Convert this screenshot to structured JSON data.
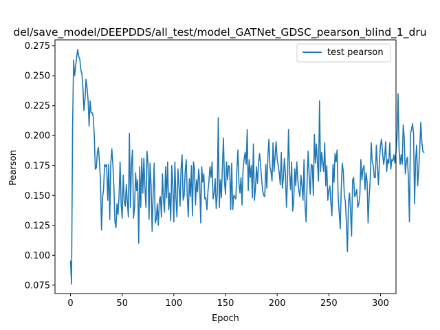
{
  "chart_data": {
    "type": "line",
    "title": "del/save_model/DEEPDDS/all_test/model_GATNet_GDSC_pearson_blind_1_dru",
    "xlabel": "Epoch",
    "ylabel": "Pearson",
    "xlim": [
      -15,
      315
    ],
    "ylim": [
      0.068,
      0.28
    ],
    "xticks": [
      0,
      50,
      100,
      150,
      200,
      250,
      300
    ],
    "xtick_labels": [
      "0",
      "50",
      "100",
      "150",
      "200",
      "250",
      "300"
    ],
    "yticks": [
      0.075,
      0.1,
      0.125,
      0.15,
      0.175,
      0.2,
      0.225,
      0.25,
      0.275
    ],
    "ytick_labels": [
      "0.075",
      "0.100",
      "0.125",
      "0.150",
      "0.175",
      "0.200",
      "0.225",
      "0.250",
      "0.275"
    ],
    "grid": false,
    "legend_position": "top-right",
    "colors": {
      "series": "#1f77b4"
    },
    "series": [
      {
        "name": "test pearson",
        "values": [
          0.095,
          0.076,
          0.205,
          0.263,
          0.25,
          0.258,
          0.266,
          0.272,
          0.266,
          0.264,
          0.255,
          0.252,
          0.24,
          0.221,
          0.23,
          0.247,
          0.24,
          0.23,
          0.208,
          0.229,
          0.219,
          0.219,
          0.216,
          0.2,
          0.172,
          0.173,
          0.186,
          0.19,
          0.178,
          0.163,
          0.121,
          0.148,
          0.155,
          0.176,
          0.174,
          0.176,
          0.146,
          0.176,
          0.13,
          0.177,
          0.189,
          0.176,
          0.157,
          0.128,
          0.123,
          0.143,
          0.134,
          0.15,
          0.178,
          0.143,
          0.131,
          0.167,
          0.145,
          0.141,
          0.159,
          0.145,
          0.132,
          0.202,
          0.14,
          0.176,
          0.188,
          0.131,
          0.14,
          0.169,
          0.154,
          0.163,
          0.11,
          0.174,
          0.14,
          0.181,
          0.152,
          0.181,
          0.157,
          0.14,
          0.187,
          0.177,
          0.13,
          0.177,
          0.158,
          0.12,
          0.152,
          0.177,
          0.127,
          0.13,
          0.143,
          0.125,
          0.146,
          0.149,
          0.132,
          0.168,
          0.146,
          0.136,
          0.174,
          0.148,
          0.178,
          0.138,
          0.152,
          0.129,
          0.175,
          0.158,
          0.128,
          0.178,
          0.148,
          0.132,
          0.172,
          0.158,
          0.141,
          0.172,
          0.184,
          0.146,
          0.15,
          0.17,
          0.18,
          0.149,
          0.132,
          0.164,
          0.149,
          0.175,
          0.133,
          0.178,
          0.172,
          0.142,
          0.163,
          0.153,
          0.172,
          0.162,
          0.127,
          0.174,
          0.161,
          0.168,
          0.147,
          0.148,
          0.138,
          0.153,
          0.162,
          0.174,
          0.165,
          0.178,
          0.147,
          0.152,
          0.164,
          0.139,
          0.151,
          0.215,
          0.14,
          0.163,
          0.148,
          0.173,
          0.198,
          0.162,
          0.151,
          0.178,
          0.163,
          0.175,
          0.174,
          0.138,
          0.177,
          0.138,
          0.15,
          0.149,
          0.147,
          0.171,
          0.188,
          0.16,
          0.152,
          0.165,
          0.142,
          0.172,
          0.18,
          0.186,
          0.176,
          0.205,
          0.154,
          0.18,
          0.165,
          0.175,
          0.148,
          0.193,
          0.146,
          0.156,
          0.174,
          0.16,
          0.177,
          0.185,
          0.175,
          0.163,
          0.154,
          0.15,
          0.149,
          0.176,
          0.156,
          0.182,
          0.197,
          0.174,
          0.17,
          0.162,
          0.194,
          0.17,
          0.183,
          0.195,
          0.18,
          0.175,
          0.169,
          0.159,
          0.186,
          0.156,
          0.164,
          0.181,
          0.168,
          0.14,
          0.164,
          0.205,
          0.168,
          0.155,
          0.178,
          0.137,
          0.145,
          0.172,
          0.158,
          0.178,
          0.163,
          0.154,
          0.149,
          0.167,
          0.158,
          0.146,
          0.18,
          0.142,
          0.128,
          0.163,
          0.187,
          0.166,
          0.151,
          0.176,
          0.175,
          0.15,
          0.201,
          0.177,
          0.193,
          0.177,
          0.162,
          0.229,
          0.17,
          0.186,
          0.178,
          0.17,
          0.194,
          0.158,
          0.175,
          0.146,
          0.154,
          0.158,
          0.144,
          0.133,
          0.176,
          0.161,
          0.185,
          0.178,
          0.188,
          0.149,
          0.136,
          0.122,
          0.155,
          0.177,
          0.17,
          0.15,
          0.145,
          0.127,
          0.103,
          0.144,
          0.152,
          0.137,
          0.116,
          0.163,
          0.165,
          0.149,
          0.151,
          0.155,
          0.14,
          0.143,
          0.15,
          0.18,
          0.163,
          0.172,
          0.175,
          0.155,
          0.169,
          0.162,
          0.127,
          0.149,
          0.162,
          0.194,
          0.178,
          0.175,
          0.165,
          0.165,
          0.192,
          0.174,
          0.159,
          0.18,
          0.192,
          0.197,
          0.186,
          0.176,
          0.182,
          0.195,
          0.17,
          0.18,
          0.177,
          0.194,
          0.172,
          0.18,
          0.179,
          0.184,
          0.177,
          0.186,
          0.199,
          0.235,
          0.187,
          0.176,
          0.184,
          0.176,
          0.209,
          0.198,
          0.168,
          0.178,
          0.182,
          0.165,
          0.128,
          0.202,
          0.205,
          0.21,
          0.201,
          0.143,
          0.18,
          0.192,
          0.158,
          0.172,
          0.19,
          0.211,
          0.195,
          0.187,
          0.186
        ]
      }
    ]
  }
}
